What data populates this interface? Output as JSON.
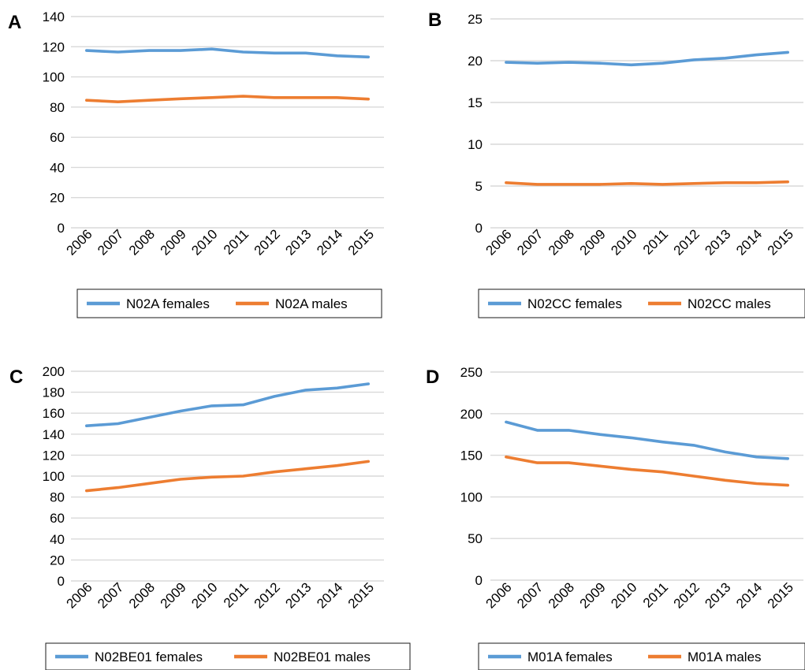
{
  "colors": {
    "female": "#5b9bd5",
    "male": "#ed7d31",
    "grid": "#d9d9d9",
    "text": "#000000"
  },
  "chart_data": [
    {
      "panel_letter": "A",
      "type": "line",
      "x": [
        "2006",
        "2007",
        "2008",
        "2009",
        "2010",
        "2011",
        "2012",
        "2013",
        "2014",
        "2015"
      ],
      "ylim": [
        0,
        140
      ],
      "yticks": [
        0,
        20,
        40,
        60,
        80,
        100,
        120,
        140
      ],
      "grid": true,
      "legend_position": "bottom",
      "series": [
        {
          "name": "N02A females",
          "color": "#5b9bd5",
          "values": [
            117.5,
            116.5,
            117.5,
            117.5,
            118.5,
            116.5,
            115.8,
            115.8,
            114,
            113.2
          ]
        },
        {
          "name": "N02A males",
          "color": "#ed7d31",
          "values": [
            84.5,
            83.5,
            84.5,
            85.5,
            86.3,
            87.2,
            86.3,
            86.3,
            86.3,
            85.3
          ]
        }
      ]
    },
    {
      "panel_letter": "B",
      "type": "line",
      "x": [
        "2006",
        "2007",
        "2008",
        "2009",
        "2010",
        "2011",
        "2012",
        "2013",
        "2014",
        "2015"
      ],
      "ylim": [
        0,
        25
      ],
      "yticks": [
        0,
        5,
        10,
        15,
        20,
        25
      ],
      "grid": true,
      "legend_position": "bottom",
      "series": [
        {
          "name": "N02CC females",
          "color": "#5b9bd5",
          "values": [
            19.8,
            19.7,
            19.8,
            19.7,
            19.5,
            19.7,
            20.1,
            20.3,
            20.7,
            21.0
          ]
        },
        {
          "name": "N02CC males",
          "color": "#ed7d31",
          "values": [
            5.4,
            5.2,
            5.2,
            5.2,
            5.3,
            5.2,
            5.3,
            5.4,
            5.4,
            5.5
          ]
        }
      ]
    },
    {
      "panel_letter": "C",
      "type": "line",
      "x": [
        "2006",
        "2007",
        "2008",
        "2009",
        "2010",
        "2011",
        "2012",
        "2013",
        "2014",
        "2015"
      ],
      "ylim": [
        0,
        200
      ],
      "yticks": [
        0,
        20,
        40,
        60,
        80,
        100,
        120,
        140,
        160,
        180,
        200
      ],
      "grid": true,
      "legend_position": "bottom",
      "series": [
        {
          "name": "N02BE01 females",
          "color": "#5b9bd5",
          "values": [
            148,
            150,
            156,
            162,
            167,
            168,
            176,
            182,
            184,
            188
          ]
        },
        {
          "name": "N02BE01 males",
          "color": "#ed7d31",
          "values": [
            86,
            89,
            93,
            97,
            99,
            100,
            104,
            107,
            110,
            114
          ]
        }
      ]
    },
    {
      "panel_letter": "D",
      "type": "line",
      "x": [
        "2006",
        "2007",
        "2008",
        "2009",
        "2010",
        "2011",
        "2012",
        "2013",
        "2014",
        "2015"
      ],
      "ylim": [
        0,
        250
      ],
      "yticks": [
        0,
        50,
        100,
        150,
        200,
        250
      ],
      "grid": true,
      "legend_position": "bottom",
      "series": [
        {
          "name": "M01A females",
          "color": "#5b9bd5",
          "values": [
            190,
            180,
            180,
            175,
            171,
            166,
            162,
            154,
            148,
            146
          ]
        },
        {
          "name": "M01A males",
          "color": "#ed7d31",
          "values": [
            148,
            141,
            141,
            137,
            133,
            130,
            125,
            120,
            116,
            114
          ]
        }
      ]
    }
  ]
}
